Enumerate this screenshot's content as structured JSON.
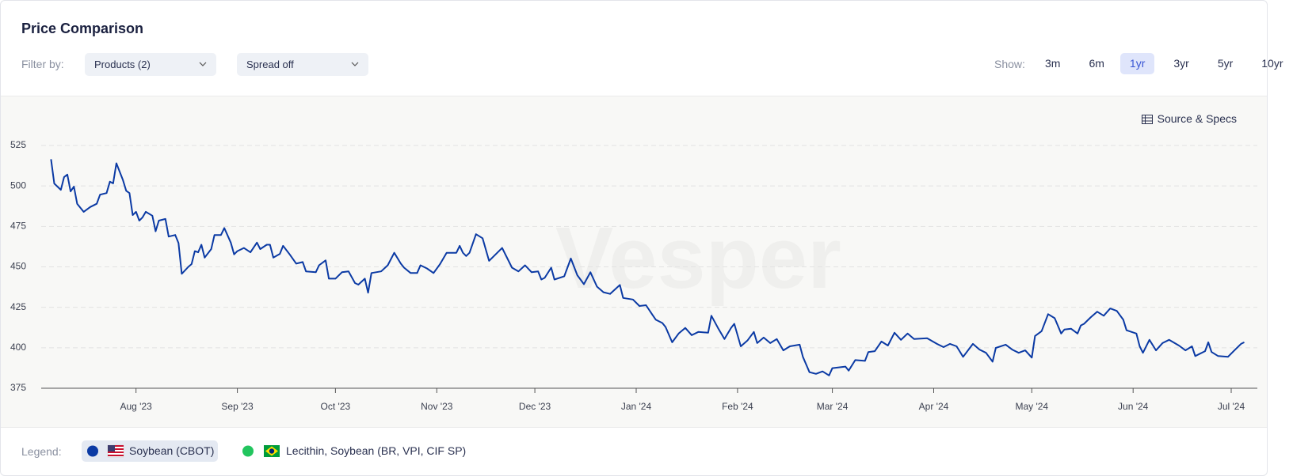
{
  "header": {
    "title": "Price Comparison",
    "filter_label": "Filter by:",
    "filters": [
      "Products (2)",
      "Spread off"
    ],
    "show_label": "Show:",
    "ranges": [
      "3m",
      "6m",
      "1yr",
      "3yr",
      "5yr",
      "10yr"
    ],
    "active_range": "1yr"
  },
  "source_link": "Source & Specs",
  "watermark": "Vesper",
  "legend": {
    "title": "Legend:",
    "other_item": "Lecithin, Soybean (BR, VPI, CIF SP)",
    "other_color": "#22c55e"
  },
  "chart_data": {
    "type": "line",
    "grid": true,
    "x": [
      -26,
      -25,
      -23,
      -22,
      -21,
      -20,
      -19,
      -18,
      -16,
      -14,
      -12,
      -11,
      -9,
      -8,
      -7,
      -6,
      -4,
      -3,
      -2,
      -1,
      0,
      1,
      2,
      3,
      5,
      6,
      7,
      9,
      10,
      12,
      13,
      14,
      16,
      17,
      18,
      19,
      20,
      21,
      23,
      24,
      26,
      27,
      29,
      30,
      31,
      33,
      35,
      37,
      38,
      40,
      41,
      42,
      44,
      45,
      47,
      49,
      51,
      52,
      55,
      56,
      58,
      59,
      61,
      63,
      65,
      67,
      68,
      70,
      71,
      72,
      75,
      77,
      79,
      81,
      82,
      84,
      86,
      87,
      89,
      91,
      93,
      95,
      98,
      99,
      100,
      101,
      102,
      104,
      106,
      108,
      110,
      112,
      115,
      117,
      119,
      121,
      123,
      124,
      125,
      127,
      128,
      131,
      133,
      135,
      137,
      139,
      141,
      143,
      145,
      148,
      149,
      152,
      154,
      156,
      158,
      159,
      161,
      162,
      164,
      166,
      168,
      170,
      172,
      175,
      176,
      178,
      180,
      182,
      183,
      185,
      187,
      189,
      190,
      192,
      194,
      196,
      198,
      200,
      203,
      204,
      206,
      208,
      210,
      212,
      213,
      217,
      218,
      220,
      223,
      224,
      226,
      228,
      230,
      232,
      234,
      236,
      238,
      242,
      245,
      247,
      249,
      251,
      253,
      256,
      258,
      260,
      262,
      263,
      266,
      268,
      270,
      272,
      274,
      275,
      277,
      279,
      281,
      283,
      284,
      286,
      288,
      289,
      290,
      292,
      294,
      296,
      298,
      300,
      302,
      303,
      306,
      307,
      308,
      310,
      312,
      314,
      316,
      319,
      321,
      323,
      324,
      327,
      328,
      329,
      331,
      334,
      336,
      338,
      339
    ],
    "series": [
      {
        "name": "Soybean (CBOT)",
        "color": "#0b3aa4",
        "values": [
          516.5,
          501.5,
          497.6,
          505.5,
          507,
          496.6,
          499.6,
          489,
          484,
          487,
          489,
          494.6,
          495.6,
          502.6,
          501.6,
          514,
          503.6,
          497,
          495.6,
          482,
          484,
          478.6,
          480.6,
          484,
          481.6,
          472,
          478.6,
          479.6,
          468.7,
          469.7,
          464.7,
          445.7,
          450,
          451.7,
          459.7,
          459,
          463.7,
          455.7,
          461,
          469.7,
          469.7,
          474,
          465,
          457.7,
          459.7,
          461.7,
          459,
          465,
          461,
          463.7,
          463.7,
          455.7,
          458,
          463,
          457.7,
          452,
          453,
          447.2,
          446.7,
          451,
          454,
          442.7,
          442.7,
          446.7,
          447.2,
          440,
          439,
          442.7,
          434,
          446.2,
          447.2,
          451,
          458.7,
          452,
          449.5,
          446.2,
          446.2,
          451,
          449,
          446.2,
          451.7,
          458.7,
          458.7,
          463,
          458.7,
          456.7,
          458.7,
          470.2,
          467.7,
          453.7,
          457.7,
          461.7,
          449.5,
          447.2,
          451,
          446.7,
          447.2,
          442.2,
          443.2,
          449.5,
          442.2,
          444.2,
          455.2,
          444.8,
          439.3,
          446.7,
          437.8,
          434.3,
          433.3,
          438.8,
          430.8,
          429.8,
          425.8,
          426.3,
          420.3,
          417.3,
          415.3,
          412.8,
          403.4,
          408.8,
          412.3,
          407.8,
          409.8,
          409.3,
          419.8,
          412.3,
          405.4,
          412.3,
          414.8,
          400.9,
          404.4,
          409.8,
          402.9,
          406.3,
          402.9,
          405.4,
          398.4,
          400.9,
          401.9,
          394.4,
          384.9,
          383.9,
          385.4,
          382.9,
          387.4,
          388.4,
          385.9,
          392.4,
          391.9,
          397.4,
          397.9,
          403.9,
          401.4,
          409.3,
          404.9,
          408.8,
          405.4,
          405.9,
          402.4,
          400.4,
          402.4,
          400.9,
          394.4,
          402.4,
          398.9,
          396.9,
          391.4,
          399.9,
          401.9,
          398.9,
          396.9,
          398.4,
          393.9,
          407.3,
          410.3,
          420.8,
          418.3,
          408.8,
          411.3,
          411.8,
          408.8,
          413.8,
          414.8,
          418.8,
          422.3,
          419.8,
          424.3,
          422.8,
          417.3,
          410.8,
          408.8,
          400.9,
          396.9,
          404.9,
          398.4,
          402.9,
          404.9,
          401.4,
          398.4,
          400.9,
          394.9,
          397.9,
          403.4,
          397.4,
          394.9,
          394.4,
          398.4,
          402.4,
          403.4
        ]
      }
    ],
    "xlim": [
      -29,
      343
    ],
    "xticks": [
      {
        "value": 0,
        "label": "Aug '23"
      },
      {
        "value": 31,
        "label": "Sep '23"
      },
      {
        "value": 61,
        "label": "Oct '23"
      },
      {
        "value": 92,
        "label": "Nov '23"
      },
      {
        "value": 122,
        "label": "Dec '23"
      },
      {
        "value": 153,
        "label": "Jan '24"
      },
      {
        "value": 184,
        "label": "Feb '24"
      },
      {
        "value": 213,
        "label": "Mar '24"
      },
      {
        "value": 244,
        "label": "Apr '24"
      },
      {
        "value": 274,
        "label": "May '24"
      },
      {
        "value": 305,
        "label": "Jun '24"
      },
      {
        "value": 335,
        "label": "Jul '24"
      }
    ],
    "ylim": [
      375,
      525
    ],
    "yticks": [
      375,
      400,
      425,
      450,
      475,
      500,
      525
    ]
  }
}
